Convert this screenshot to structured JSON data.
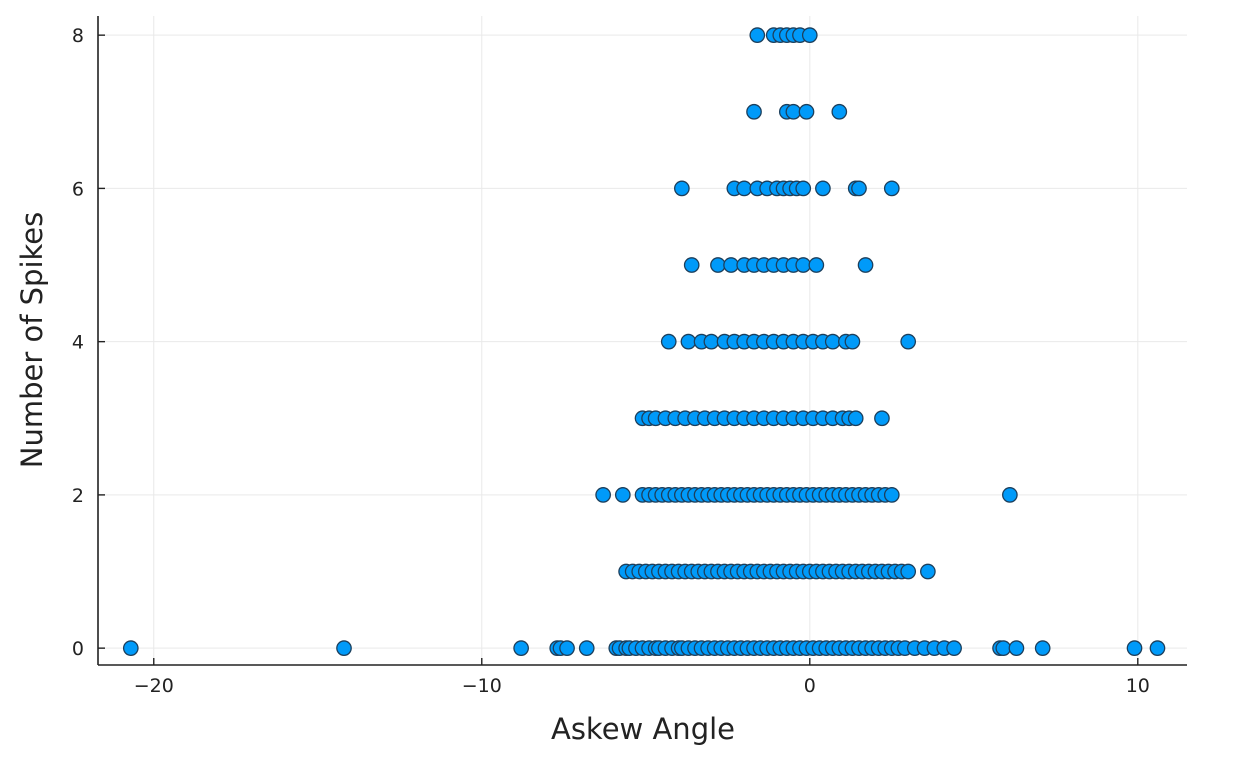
{
  "chart_data": {
    "type": "scatter",
    "title": "",
    "xlabel": "Askew Angle",
    "ylabel": "Number of Spikes",
    "xlim": [
      -21.7,
      11.5
    ],
    "ylim": [
      -0.22,
      8.25
    ],
    "xticks": [
      -20,
      -10,
      0,
      10
    ],
    "yticks": [
      0,
      2,
      4,
      6,
      8
    ],
    "grid": true,
    "legend": "none",
    "marker_color": "#009af9",
    "marker_edge_color": "#1c3f5c",
    "series": [
      {
        "x": [
          -20.7,
          -14.2,
          -8.8,
          -7.7,
          -7.6,
          -7.4,
          -6.8,
          -5.9,
          -5.8,
          -5.6,
          -5.5,
          -5.3,
          -5.1,
          -4.9,
          -4.7,
          -4.6,
          -4.4,
          -4.2,
          -4.0,
          -3.9,
          -3.7,
          -3.5,
          -3.3,
          -3.1,
          -2.9,
          -2.7,
          -2.5,
          -2.3,
          -2.1,
          -1.9,
          -1.7,
          -1.5,
          -1.3,
          -1.1,
          -0.9,
          -0.7,
          -0.5,
          -0.3,
          -0.1,
          0.1,
          0.3,
          0.5,
          0.7,
          0.9,
          1.1,
          1.3,
          1.5,
          1.7,
          1.9,
          2.1,
          2.3,
          2.5,
          2.7,
          2.9,
          3.2,
          3.5,
          3.8,
          4.1,
          4.4,
          5.8,
          5.9,
          6.3,
          7.1,
          9.9,
          10.6,
          -5.6,
          -5.4,
          -5.2,
          -5.0,
          -4.8,
          -4.6,
          -4.4,
          -4.2,
          -4.0,
          -3.8,
          -3.6,
          -3.4,
          -3.2,
          -3.0,
          -2.8,
          -2.6,
          -2.4,
          -2.2,
          -2.0,
          -1.8,
          -1.6,
          -1.4,
          -1.2,
          -1.0,
          -0.8,
          -0.6,
          -0.4,
          -0.2,
          0.0,
          0.2,
          0.4,
          0.6,
          0.8,
          1.0,
          1.2,
          1.4,
          1.6,
          1.8,
          2.0,
          2.2,
          2.4,
          2.6,
          2.8,
          3.0,
          3.6,
          -6.3,
          -5.7,
          -5.1,
          -4.9,
          -4.7,
          -4.5,
          -4.3,
          -4.1,
          -3.9,
          -3.7,
          -3.5,
          -3.3,
          -3.1,
          -2.9,
          -2.7,
          -2.5,
          -2.3,
          -2.1,
          -1.9,
          -1.7,
          -1.5,
          -1.3,
          -1.1,
          -0.9,
          -0.7,
          -0.5,
          -0.3,
          -0.1,
          0.1,
          0.3,
          0.5,
          0.7,
          0.9,
          1.1,
          1.3,
          1.5,
          1.7,
          1.9,
          2.1,
          2.3,
          2.5,
          6.1,
          -5.1,
          -4.9,
          -4.7,
          -4.4,
          -4.1,
          -3.8,
          -3.5,
          -3.2,
          -2.9,
          -2.6,
          -2.3,
          -2.0,
          -1.7,
          -1.4,
          -1.1,
          -0.8,
          -0.5,
          -0.2,
          0.1,
          0.4,
          0.7,
          1.0,
          1.2,
          1.4,
          2.2,
          -4.3,
          -3.7,
          -3.3,
          -3.0,
          -2.6,
          -2.3,
          -2.0,
          -1.7,
          -1.4,
          -1.1,
          -0.8,
          -0.5,
          -0.2,
          0.1,
          0.4,
          0.7,
          1.1,
          1.3,
          3.0,
          -3.6,
          -2.8,
          -2.4,
          -2.0,
          -1.7,
          -1.4,
          -1.1,
          -0.8,
          -0.5,
          -0.2,
          0.2,
          1.7,
          -3.9,
          -2.3,
          -2.0,
          -1.6,
          -1.3,
          -1.0,
          -0.8,
          -0.6,
          -0.4,
          -0.2,
          0.4,
          1.4,
          1.5,
          2.5,
          -1.7,
          -0.7,
          -0.5,
          -0.1,
          0.9,
          -1.6,
          -1.1,
          -0.9,
          -0.7,
          -0.5,
          -0.3,
          0.0
        ],
        "y": [
          0,
          0,
          0,
          0,
          0,
          0,
          0,
          0,
          0,
          0,
          0,
          0,
          0,
          0,
          0,
          0,
          0,
          0,
          0,
          0,
          0,
          0,
          0,
          0,
          0,
          0,
          0,
          0,
          0,
          0,
          0,
          0,
          0,
          0,
          0,
          0,
          0,
          0,
          0,
          0,
          0,
          0,
          0,
          0,
          0,
          0,
          0,
          0,
          0,
          0,
          0,
          0,
          0,
          0,
          0,
          0,
          0,
          0,
          0,
          0,
          0,
          0,
          0,
          0,
          0,
          1,
          1,
          1,
          1,
          1,
          1,
          1,
          1,
          1,
          1,
          1,
          1,
          1,
          1,
          1,
          1,
          1,
          1,
          1,
          1,
          1,
          1,
          1,
          1,
          1,
          1,
          1,
          1,
          1,
          1,
          1,
          1,
          1,
          1,
          1,
          1,
          1,
          1,
          1,
          1,
          1,
          1,
          1,
          1,
          1,
          2,
          2,
          2,
          2,
          2,
          2,
          2,
          2,
          2,
          2,
          2,
          2,
          2,
          2,
          2,
          2,
          2,
          2,
          2,
          2,
          2,
          2,
          2,
          2,
          2,
          2,
          2,
          2,
          2,
          2,
          2,
          2,
          2,
          2,
          2,
          2,
          2,
          2,
          2,
          2,
          2,
          2,
          3,
          3,
          3,
          3,
          3,
          3,
          3,
          3,
          3,
          3,
          3,
          3,
          3,
          3,
          3,
          3,
          3,
          3,
          3,
          3,
          3,
          3,
          3,
          3,
          3,
          4,
          4,
          4,
          4,
          4,
          4,
          4,
          4,
          4,
          4,
          4,
          4,
          4,
          4,
          4,
          4,
          4,
          4,
          4,
          5,
          5,
          5,
          5,
          5,
          5,
          5,
          5,
          5,
          5,
          5,
          5,
          6,
          6,
          6,
          6,
          6,
          6,
          6,
          6,
          6,
          6,
          6,
          6,
          6,
          6,
          7,
          7,
          7,
          7,
          7,
          8,
          8,
          8,
          8,
          8,
          8,
          8
        ]
      }
    ]
  }
}
